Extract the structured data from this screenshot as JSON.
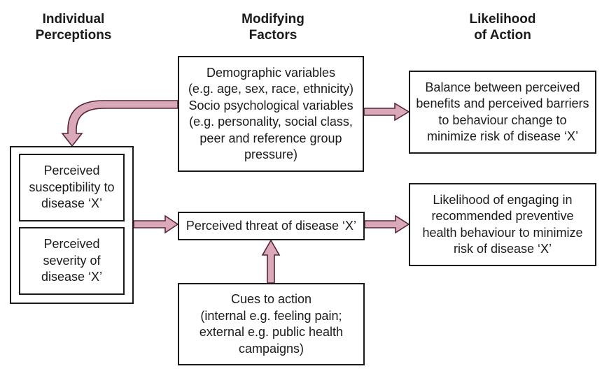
{
  "headers": {
    "individual": [
      "Individual",
      "Perceptions"
    ],
    "modifying": [
      "Modifying",
      "Factors"
    ],
    "likelihood": [
      "Likelihood",
      "of Action"
    ]
  },
  "boxes": {
    "modifying_factors": [
      "Demographic variables",
      "(e.g. age, sex, race, ethnicity)",
      "Socio psychological variables",
      "(e.g. personality, social class,",
      "peer and reference group",
      "pressure)"
    ],
    "balance": [
      "Balance between perceived",
      "benefits and perceived barriers",
      "to behaviour change to",
      "minimize risk of disease ‘X’"
    ],
    "susceptibility": [
      "Perceived",
      "susceptibility to",
      "disease ‘X’"
    ],
    "severity": [
      "Perceived",
      "severity of",
      "disease ‘X’"
    ],
    "threat": [
      "Perceived threat of disease ‘X’"
    ],
    "likelihood_action": [
      "Likelihood of engaging in",
      "recommended preventive",
      "health behaviour to minimize",
      "risk of disease ‘X’"
    ],
    "cues": [
      "Cues to action",
      "(internal e.g. feeling pain;",
      "external e.g. public health",
      "campaigns)"
    ]
  },
  "colors": {
    "arrow_fill": "#d9a9b9",
    "arrow_stroke": "#5a2535",
    "box_border": "#1a1a1a"
  }
}
